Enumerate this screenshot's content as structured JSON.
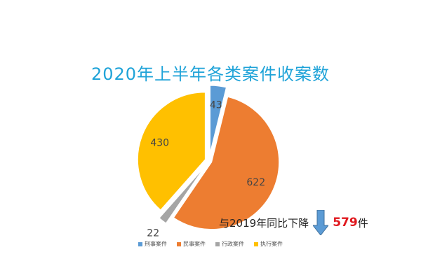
{
  "chart_data": {
    "type": "pie",
    "title": "2020年上半年各类案件收案数",
    "categories": [
      "刑事案件",
      "民事案件",
      "行政案件",
      "执行案件"
    ],
    "values": [
      43,
      622,
      22,
      430
    ],
    "colors": [
      "#5b9bd5",
      "#ed7d31",
      "#a5a5a5",
      "#ffc000"
    ],
    "exploded": true,
    "legend_position": "bottom"
  },
  "annotation": {
    "prefix": "与2019年同比下降",
    "value": "579",
    "suffix": "件"
  }
}
